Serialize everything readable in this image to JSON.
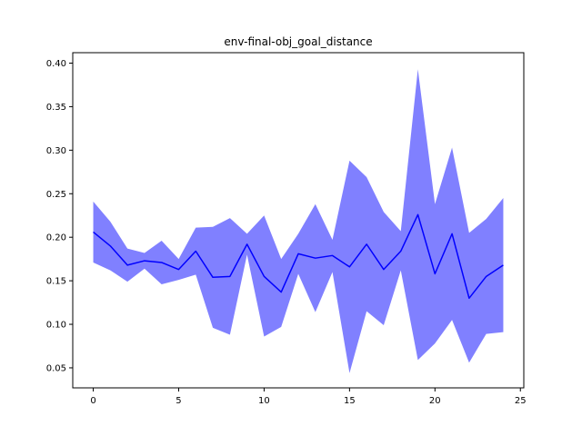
{
  "chart_data": {
    "type": "line",
    "title": "env-final-obj_goal_distance",
    "xlabel": "",
    "ylabel": "",
    "xlim": [
      -1.2,
      25.2
    ],
    "ylim": [
      0.027,
      0.412
    ],
    "x_ticks": [
      0,
      5,
      10,
      15,
      20,
      25
    ],
    "y_ticks": [
      0.05,
      0.1,
      0.15,
      0.2,
      0.25,
      0.3,
      0.35,
      0.4
    ],
    "x_tick_labels": [
      "0",
      "5",
      "10",
      "15",
      "20",
      "25"
    ],
    "y_tick_labels": [
      "0.05",
      "0.10",
      "0.15",
      "0.20",
      "0.25",
      "0.30",
      "0.35",
      "0.40"
    ],
    "grid": false,
    "line_color": "#0000ff",
    "band_color": "#8080ff",
    "series": [
      {
        "x": [
          0,
          1,
          2,
          3,
          4,
          5,
          6,
          7,
          8,
          9,
          10,
          11,
          12,
          13,
          14,
          15,
          16,
          17,
          18,
          19,
          20,
          21,
          22,
          23,
          24
        ],
        "mean": [
          0.206,
          0.19,
          0.168,
          0.173,
          0.171,
          0.163,
          0.184,
          0.154,
          0.155,
          0.192,
          0.155,
          0.137,
          0.181,
          0.176,
          0.179,
          0.166,
          0.192,
          0.163,
          0.184,
          0.226,
          0.158,
          0.204,
          0.13,
          0.155,
          0.168
        ],
        "upper": [
          0.241,
          0.218,
          0.187,
          0.182,
          0.196,
          0.175,
          0.211,
          0.212,
          0.222,
          0.204,
          0.225,
          0.175,
          0.204,
          0.238,
          0.197,
          0.288,
          0.269,
          0.229,
          0.207,
          0.393,
          0.238,
          0.303,
          0.205,
          0.221,
          0.245
        ],
        "lower": [
          0.171,
          0.162,
          0.149,
          0.164,
          0.146,
          0.151,
          0.157,
          0.096,
          0.088,
          0.18,
          0.086,
          0.097,
          0.158,
          0.114,
          0.16,
          0.044,
          0.115,
          0.099,
          0.162,
          0.059,
          0.078,
          0.105,
          0.056,
          0.089,
          0.091
        ]
      }
    ]
  }
}
